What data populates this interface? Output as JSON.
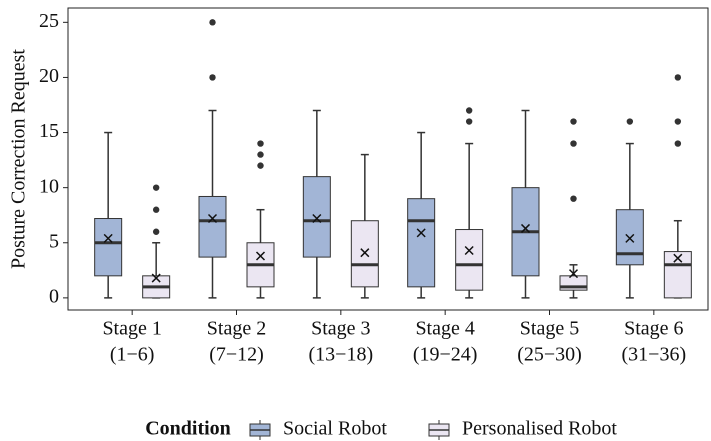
{
  "chart_data": {
    "type": "box",
    "ylabel": "Posture Correction Request",
    "categories": [
      [
        "Stage 1",
        "(1−6)"
      ],
      [
        "Stage 2",
        "(7−12)"
      ],
      [
        "Stage 3",
        "(13−18)"
      ],
      [
        "Stage 4",
        "(19−24)"
      ],
      [
        "Stage 5",
        "(25−30)"
      ],
      [
        "Stage 6",
        "(31−36)"
      ]
    ],
    "ylim": [
      -1.1,
      26.3
    ],
    "yticks": [
      0,
      5,
      10,
      15,
      20,
      25
    ],
    "legend_title": "Condition",
    "series": [
      {
        "name": "Social Robot",
        "color": "#a2b5d6",
        "min": [
          0,
          0,
          0,
          0,
          0,
          0
        ],
        "q1": [
          2,
          3.7,
          3.7,
          1,
          2,
          3
        ],
        "median": [
          5,
          7,
          7,
          7,
          6,
          4
        ],
        "q3": [
          7.2,
          9.2,
          11,
          9,
          10,
          8
        ],
        "max": [
          15,
          17,
          17,
          15,
          17,
          14
        ],
        "mean": [
          5.4,
          7.2,
          7.2,
          5.9,
          6.3,
          5.4
        ],
        "outliers": [
          [],
          [
            20,
            25
          ],
          [],
          [],
          [],
          [
            16
          ]
        ]
      },
      {
        "name": "Personalised Robot",
        "color": "#ebe6f2",
        "min": [
          0,
          0,
          0,
          0,
          0,
          0
        ],
        "q1": [
          0,
          1,
          1,
          0.7,
          0.7,
          0
        ],
        "median": [
          1,
          3,
          3,
          3,
          1,
          3
        ],
        "q3": [
          2,
          5,
          7,
          6.2,
          2,
          4.2
        ],
        "max": [
          5,
          8,
          13,
          14,
          3,
          7
        ],
        "mean": [
          1.8,
          3.8,
          4.1,
          4.3,
          2.2,
          3.6
        ],
        "outliers": [
          [
            6,
            8,
            10
          ],
          [
            12,
            13,
            14
          ],
          [],
          [
            16,
            17
          ],
          [
            9,
            14,
            16
          ],
          [
            14,
            16,
            20
          ]
        ]
      }
    ]
  }
}
